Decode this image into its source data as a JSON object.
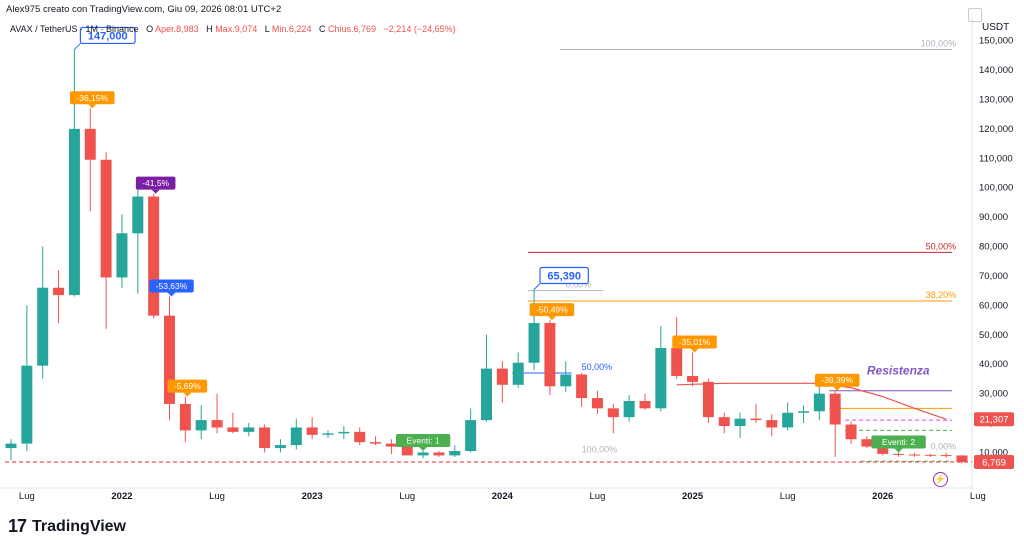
{
  "header": {
    "text": "Alex975 creato con TradingView.com, Giu 09, 2026 08:01 UTC+2"
  },
  "symbol_line": {
    "symbol": "AVAX / TetherUS · 1M · Binance",
    "o_label": "O",
    "o_value": "Aper.8,983",
    "h_label": "H",
    "h_value": "Max.9,074",
    "l_label": "L",
    "l_value": "Min.6,224",
    "c_label": "C",
    "c_value": "Chius.6,769",
    "change": "−2,214 (−24,65%)"
  },
  "axis": {
    "unit": "USDT"
  },
  "brand": {
    "logo_mark": "17",
    "logo_text": "TradingView"
  },
  "icons": {
    "settings": "gear-icon",
    "lightning": "lightning-icon"
  },
  "colors": {
    "up": "#26a69a",
    "down": "#ef5350",
    "orange_label": "#ff9800",
    "purple_label": "#7b1fa2",
    "blue_label": "#2962ff",
    "green_label": "#4caf50",
    "resistance_text": "#7e57c2",
    "fib50_line": "#c62828",
    "fib38_line": "#ff9800"
  },
  "chart_data": {
    "type": "candlestick",
    "ylim": [
      0,
      155
    ],
    "y_ticks": [
      {
        "v": 150,
        "label": "150,000"
      },
      {
        "v": 140,
        "label": "140,000"
      },
      {
        "v": 130,
        "label": "130,000"
      },
      {
        "v": 120,
        "label": "120,000"
      },
      {
        "v": 110,
        "label": "110,000"
      },
      {
        "v": 100,
        "label": "100,000"
      },
      {
        "v": 90,
        "label": "90,000"
      },
      {
        "v": 80,
        "label": "80,000"
      },
      {
        "v": 70,
        "label": "70,000"
      },
      {
        "v": 60,
        "label": "60,000"
      },
      {
        "v": 50,
        "label": "50,000"
      },
      {
        "v": 40,
        "label": "40,000"
      },
      {
        "v": 30,
        "label": "30,000"
      },
      {
        "v": 20,
        "label": "20,000"
      },
      {
        "v": 10,
        "label": "10,000"
      }
    ],
    "x_ticks": [
      {
        "month": "2021-07",
        "label": "Lug",
        "bold": false
      },
      {
        "month": "2022-01",
        "label": "2022",
        "bold": true
      },
      {
        "month": "2022-07",
        "label": "Lug",
        "bold": false
      },
      {
        "month": "2023-01",
        "label": "2023",
        "bold": true
      },
      {
        "month": "2023-07",
        "label": "Lug",
        "bold": false
      },
      {
        "month": "2024-01",
        "label": "2024",
        "bold": true
      },
      {
        "month": "2024-07",
        "label": "Lug",
        "bold": false
      },
      {
        "month": "2025-01",
        "label": "2025",
        "bold": true
      },
      {
        "month": "2025-07",
        "label": "Lug",
        "bold": false
      },
      {
        "month": "2026-01",
        "label": "2026",
        "bold": true
      },
      {
        "month": "2026-07",
        "label": "Lug",
        "bold": false
      }
    ],
    "candles": [
      {
        "month": "2021-06",
        "o": 11.5,
        "h": 14.5,
        "l": 7.5,
        "c": 13.0
      },
      {
        "month": "2021-07",
        "o": 13.0,
        "h": 60.0,
        "l": 10.5,
        "c": 39.5
      },
      {
        "month": "2021-08",
        "o": 39.5,
        "h": 80.0,
        "l": 35.0,
        "c": 66.0
      },
      {
        "month": "2021-09",
        "o": 66.0,
        "h": 72.0,
        "l": 54.0,
        "c": 63.5
      },
      {
        "month": "2021-10",
        "o": 63.5,
        "h": 147.0,
        "l": 63.0,
        "c": 120.0
      },
      {
        "month": "2021-11",
        "o": 120.0,
        "h": 127.0,
        "l": 92.0,
        "c": 109.5
      },
      {
        "month": "2021-12",
        "o": 109.5,
        "h": 112.0,
        "l": 52.0,
        "c": 69.5
      },
      {
        "month": "2022-01",
        "o": 69.5,
        "h": 91.0,
        "l": 66.0,
        "c": 84.5
      },
      {
        "month": "2022-02",
        "o": 84.5,
        "h": 102.0,
        "l": 64.0,
        "c": 97.0
      },
      {
        "month": "2022-03",
        "o": 97.0,
        "h": 98.0,
        "l": 55.5,
        "c": 56.5
      },
      {
        "month": "2022-04",
        "o": 56.5,
        "h": 63.0,
        "l": 21.0,
        "c": 26.5
      },
      {
        "month": "2022-05",
        "o": 26.5,
        "h": 29.0,
        "l": 13.5,
        "c": 17.5
      },
      {
        "month": "2022-06",
        "o": 17.5,
        "h": 26.0,
        "l": 14.5,
        "c": 21.0
      },
      {
        "month": "2022-07",
        "o": 21.0,
        "h": 30.0,
        "l": 16.5,
        "c": 18.5
      },
      {
        "month": "2022-08",
        "o": 18.5,
        "h": 23.5,
        "l": 16.5,
        "c": 17.0
      },
      {
        "month": "2022-09",
        "o": 17.0,
        "h": 20.0,
        "l": 15.5,
        "c": 18.5
      },
      {
        "month": "2022-10",
        "o": 18.5,
        "h": 19.5,
        "l": 10.0,
        "c": 11.5
      },
      {
        "month": "2022-11",
        "o": 11.5,
        "h": 14.5,
        "l": 10.0,
        "c": 12.5
      },
      {
        "month": "2022-12",
        "o": 12.5,
        "h": 21.5,
        "l": 11.0,
        "c": 18.5
      },
      {
        "month": "2023-01",
        "o": 18.5,
        "h": 22.0,
        "l": 14.5,
        "c": 16.0
      },
      {
        "month": "2023-02",
        "o": 16.0,
        "h": 17.5,
        "l": 15.0,
        "c": 16.5
      },
      {
        "month": "2023-03",
        "o": 16.5,
        "h": 19.0,
        "l": 14.5,
        "c": 17.0
      },
      {
        "month": "2023-04",
        "o": 17.0,
        "h": 18.5,
        "l": 12.5,
        "c": 13.5
      },
      {
        "month": "2023-05",
        "o": 13.5,
        "h": 15.5,
        "l": 12.5,
        "c": 13.0
      },
      {
        "month": "2023-06",
        "o": 13.0,
        "h": 14.5,
        "l": 9.5,
        "c": 12.0
      },
      {
        "month": "2023-07",
        "o": 12.0,
        "h": 13.5,
        "l": 9.5,
        "c": 9.0
      },
      {
        "month": "2023-08",
        "o": 9.0,
        "h": 10.5,
        "l": 8.0,
        "c": 10.0
      },
      {
        "month": "2023-09",
        "o": 10.0,
        "h": 10.5,
        "l": 8.5,
        "c": 9.0
      },
      {
        "month": "2023-10",
        "o": 9.0,
        "h": 12.5,
        "l": 8.5,
        "c": 10.5
      },
      {
        "month": "2023-11",
        "o": 10.5,
        "h": 25.0,
        "l": 10.0,
        "c": 21.0
      },
      {
        "month": "2023-12",
        "o": 21.0,
        "h": 50.0,
        "l": 20.5,
        "c": 38.5
      },
      {
        "month": "2024-01",
        "o": 38.5,
        "h": 41.0,
        "l": 27.0,
        "c": 33.0
      },
      {
        "month": "2024-02",
        "o": 33.0,
        "h": 44.0,
        "l": 32.0,
        "c": 40.5
      },
      {
        "month": "2024-03",
        "o": 40.5,
        "h": 65.39,
        "l": 38.0,
        "c": 54.0
      },
      {
        "month": "2024-04",
        "o": 54.0,
        "h": 55.0,
        "l": 29.5,
        "c": 32.5
      },
      {
        "month": "2024-05",
        "o": 32.5,
        "h": 41.0,
        "l": 30.5,
        "c": 36.5
      },
      {
        "month": "2024-06",
        "o": 36.5,
        "h": 37.0,
        "l": 25.5,
        "c": 28.5
      },
      {
        "month": "2024-07",
        "o": 28.5,
        "h": 31.0,
        "l": 23.0,
        "c": 25.0
      },
      {
        "month": "2024-08",
        "o": 25.0,
        "h": 26.5,
        "l": 16.5,
        "c": 22.0
      },
      {
        "month": "2024-09",
        "o": 22.0,
        "h": 29.5,
        "l": 20.5,
        "c": 27.5
      },
      {
        "month": "2024-10",
        "o": 27.5,
        "h": 30.0,
        "l": 24.5,
        "c": 25.0
      },
      {
        "month": "2024-11",
        "o": 25.0,
        "h": 53.0,
        "l": 24.0,
        "c": 45.5
      },
      {
        "month": "2024-12",
        "o": 45.5,
        "h": 56.0,
        "l": 35.0,
        "c": 36.0
      },
      {
        "month": "2025-01",
        "o": 36.0,
        "h": 44.0,
        "l": 32.5,
        "c": 34.0
      },
      {
        "month": "2025-02",
        "o": 34.0,
        "h": 35.0,
        "l": 20.0,
        "c": 22.0
      },
      {
        "month": "2025-03",
        "o": 22.0,
        "h": 23.5,
        "l": 16.5,
        "c": 19.0
      },
      {
        "month": "2025-04",
        "o": 19.0,
        "h": 23.5,
        "l": 15.0,
        "c": 21.5
      },
      {
        "month": "2025-05",
        "o": 21.5,
        "h": 26.5,
        "l": 20.0,
        "c": 21.0
      },
      {
        "month": "2025-06",
        "o": 21.0,
        "h": 23.0,
        "l": 15.5,
        "c": 18.5
      },
      {
        "month": "2025-07",
        "o": 18.5,
        "h": 27.0,
        "l": 17.5,
        "c": 23.5
      },
      {
        "month": "2025-08",
        "o": 23.5,
        "h": 26.0,
        "l": 20.0,
        "c": 24.0
      },
      {
        "month": "2025-09",
        "o": 24.0,
        "h": 34.5,
        "l": 21.0,
        "c": 30.0
      },
      {
        "month": "2025-10",
        "o": 30.0,
        "h": 31.0,
        "l": 8.5,
        "c": 19.5
      },
      {
        "month": "2025-11",
        "o": 19.5,
        "h": 20.5,
        "l": 13.0,
        "c": 14.5
      },
      {
        "month": "2025-12",
        "o": 14.5,
        "h": 15.5,
        "l": 11.5,
        "c": 12.0
      },
      {
        "month": "2026-01",
        "o": 12.0,
        "h": 13.0,
        "l": 9.0,
        "c": 9.5
      },
      {
        "month": "2026-02",
        "o": 9.5,
        "h": 10.0,
        "l": 8.5,
        "c": 9.3
      },
      {
        "month": "2026-03",
        "o": 9.3,
        "h": 9.8,
        "l": 8.5,
        "c": 9.2
      },
      {
        "month": "2026-04",
        "o": 9.2,
        "h": 9.6,
        "l": 8.5,
        "c": 9.1
      },
      {
        "month": "2026-05",
        "o": 9.1,
        "h": 9.9,
        "l": 8.2,
        "c": 9.0
      },
      {
        "month": "2026-06",
        "o": 8.983,
        "h": 9.074,
        "l": 6.224,
        "c": 6.769
      }
    ],
    "ma_line": [
      {
        "month": "2024-12",
        "v": 33.0
      },
      {
        "month": "2025-03",
        "v": 33.5
      },
      {
        "month": "2025-06",
        "v": 33.5
      },
      {
        "month": "2025-09",
        "v": 33.5
      },
      {
        "month": "2025-11",
        "v": 32.0
      },
      {
        "month": "2026-01",
        "v": 29.0
      },
      {
        "month": "2026-03",
        "v": 25.0
      },
      {
        "month": "2026-05",
        "v": 21.307
      }
    ],
    "horizontal_lines": [
      {
        "name": "level-100-top",
        "v": 147.0,
        "from": "2024-05",
        "to": "2026-05",
        "color": "#b2b5be",
        "dash": false
      },
      {
        "name": "fib-50",
        "v": 78.0,
        "from": "2024-03",
        "to": "2026-05",
        "color": "#c62828",
        "dash": false
      },
      {
        "name": "fib-38",
        "v": 61.5,
        "from": "2024-03",
        "to": "2026-05",
        "color": "#ff9800",
        "dash": false
      },
      {
        "name": "resistance",
        "v": 31.0,
        "from": "2025-10",
        "to": "2026-05",
        "color": "#7e57c2",
        "dash": false
      },
      {
        "name": "level-orange",
        "v": 25.0,
        "from": "2025-10",
        "to": "2026-05",
        "color": "#ff9800",
        "dash": false
      },
      {
        "name": "level-pink-dash",
        "v": 21.0,
        "from": "2025-11",
        "to": "2026-05",
        "color": "#e040fb",
        "dash": true
      },
      {
        "name": "level-green-dash",
        "v": 17.5,
        "from": "2025-11",
        "to": "2026-05",
        "color": "#4caf50",
        "dash": true
      },
      {
        "name": "level-green-dash-2",
        "v": 7.0,
        "from": "2025-12",
        "to": "2026-05",
        "color": "#4caf50",
        "dash": true
      },
      {
        "name": "last-price",
        "v": 6.769,
        "from": "2021-06",
        "to": "2026-06",
        "color": "#ef5350",
        "dash": true
      },
      {
        "name": "ref-range-top",
        "v": 65.0,
        "from": "2024-03",
        "to": "2024-07",
        "color": "#b2b5be",
        "dash": false
      },
      {
        "name": "ref-range-mid",
        "v": 37.0,
        "from": "2024-02",
        "to": "2024-05",
        "color": "#2962ff",
        "dash": false
      }
    ],
    "price_labels": [
      {
        "name": "label-21307",
        "v": 21.307,
        "text": "21,307",
        "bg": "#ef5350"
      },
      {
        "name": "label-6769",
        "v": 6.769,
        "text": "6,769",
        "bg": "#ef5350"
      }
    ],
    "callouts": [
      {
        "name": "callout-147000",
        "month": "2021-10",
        "v": 147.0,
        "text": "147,000",
        "style": "box-blue"
      },
      {
        "name": "callout-65390",
        "month": "2024-03",
        "v": 65.39,
        "text": "65,390",
        "style": "box-blue"
      },
      {
        "name": "pct-36-15",
        "month": "2021-11",
        "v": 127.0,
        "text": "-36,15%",
        "style": "orange"
      },
      {
        "name": "pct-41-5",
        "month": "2022-03",
        "v": 98.0,
        "text": "-41,5%",
        "style": "purple"
      },
      {
        "name": "pct-53-63",
        "month": "2022-04",
        "v": 63.0,
        "text": "-53,63%",
        "style": "blue"
      },
      {
        "name": "pct-5-69",
        "month": "2022-05",
        "v": 29.0,
        "text": "-5,69%",
        "style": "orange"
      },
      {
        "name": "pct-50-49",
        "month": "2024-04",
        "v": 55.0,
        "text": "-50,49%",
        "style": "orange"
      },
      {
        "name": "pct-35-01",
        "month": "2025-01",
        "v": 44.0,
        "text": "-35,01%",
        "style": "orange"
      },
      {
        "name": "pct-39-39",
        "month": "2025-10",
        "v": 31.0,
        "text": "-39,39%",
        "style": "orange"
      },
      {
        "name": "events-1",
        "month": "2023-08",
        "v": 10.5,
        "text": "Eventi: 1",
        "style": "green"
      },
      {
        "name": "events-2",
        "month": "2026-02",
        "v": 10.0,
        "text": "Eventi: 2",
        "style": "green"
      }
    ],
    "text_annotations": [
      {
        "name": "fib-100-top-text",
        "month": "2026-05",
        "v": 147.0,
        "text": "100,00%",
        "color": "#b2b5be",
        "align": "end"
      },
      {
        "name": "fib-50-text",
        "month": "2026-05",
        "v": 78.0,
        "text": "50,00%",
        "color": "#c62828",
        "align": "end"
      },
      {
        "name": "fib-38-text",
        "month": "2026-05",
        "v": 61.5,
        "text": "38,20%",
        "color": "#ff9800",
        "align": "end"
      },
      {
        "name": "fib-0-text-2024",
        "month": "2024-05",
        "v": 65.0,
        "text": "0,00%",
        "color": "#b2b5be",
        "align": "start"
      },
      {
        "name": "fib-50-text-2024",
        "month": "2024-06",
        "v": 37.0,
        "text": "50,00%",
        "color": "#2962ff",
        "align": "start"
      },
      {
        "name": "fib-100-text-2024",
        "month": "2024-06",
        "v": 9.0,
        "text": "100,00%",
        "color": "#b2b5be",
        "align": "start"
      },
      {
        "name": "fib-0-text-2026",
        "month": "2026-05",
        "v": 10.0,
        "text": "0,00%",
        "color": "#b2b5be",
        "align": "end"
      },
      {
        "name": "resistance-text",
        "month": "2025-12",
        "v": 35.5,
        "text": "Resistenza",
        "color": "#7e57c2",
        "align": "start",
        "bold": true
      }
    ]
  }
}
